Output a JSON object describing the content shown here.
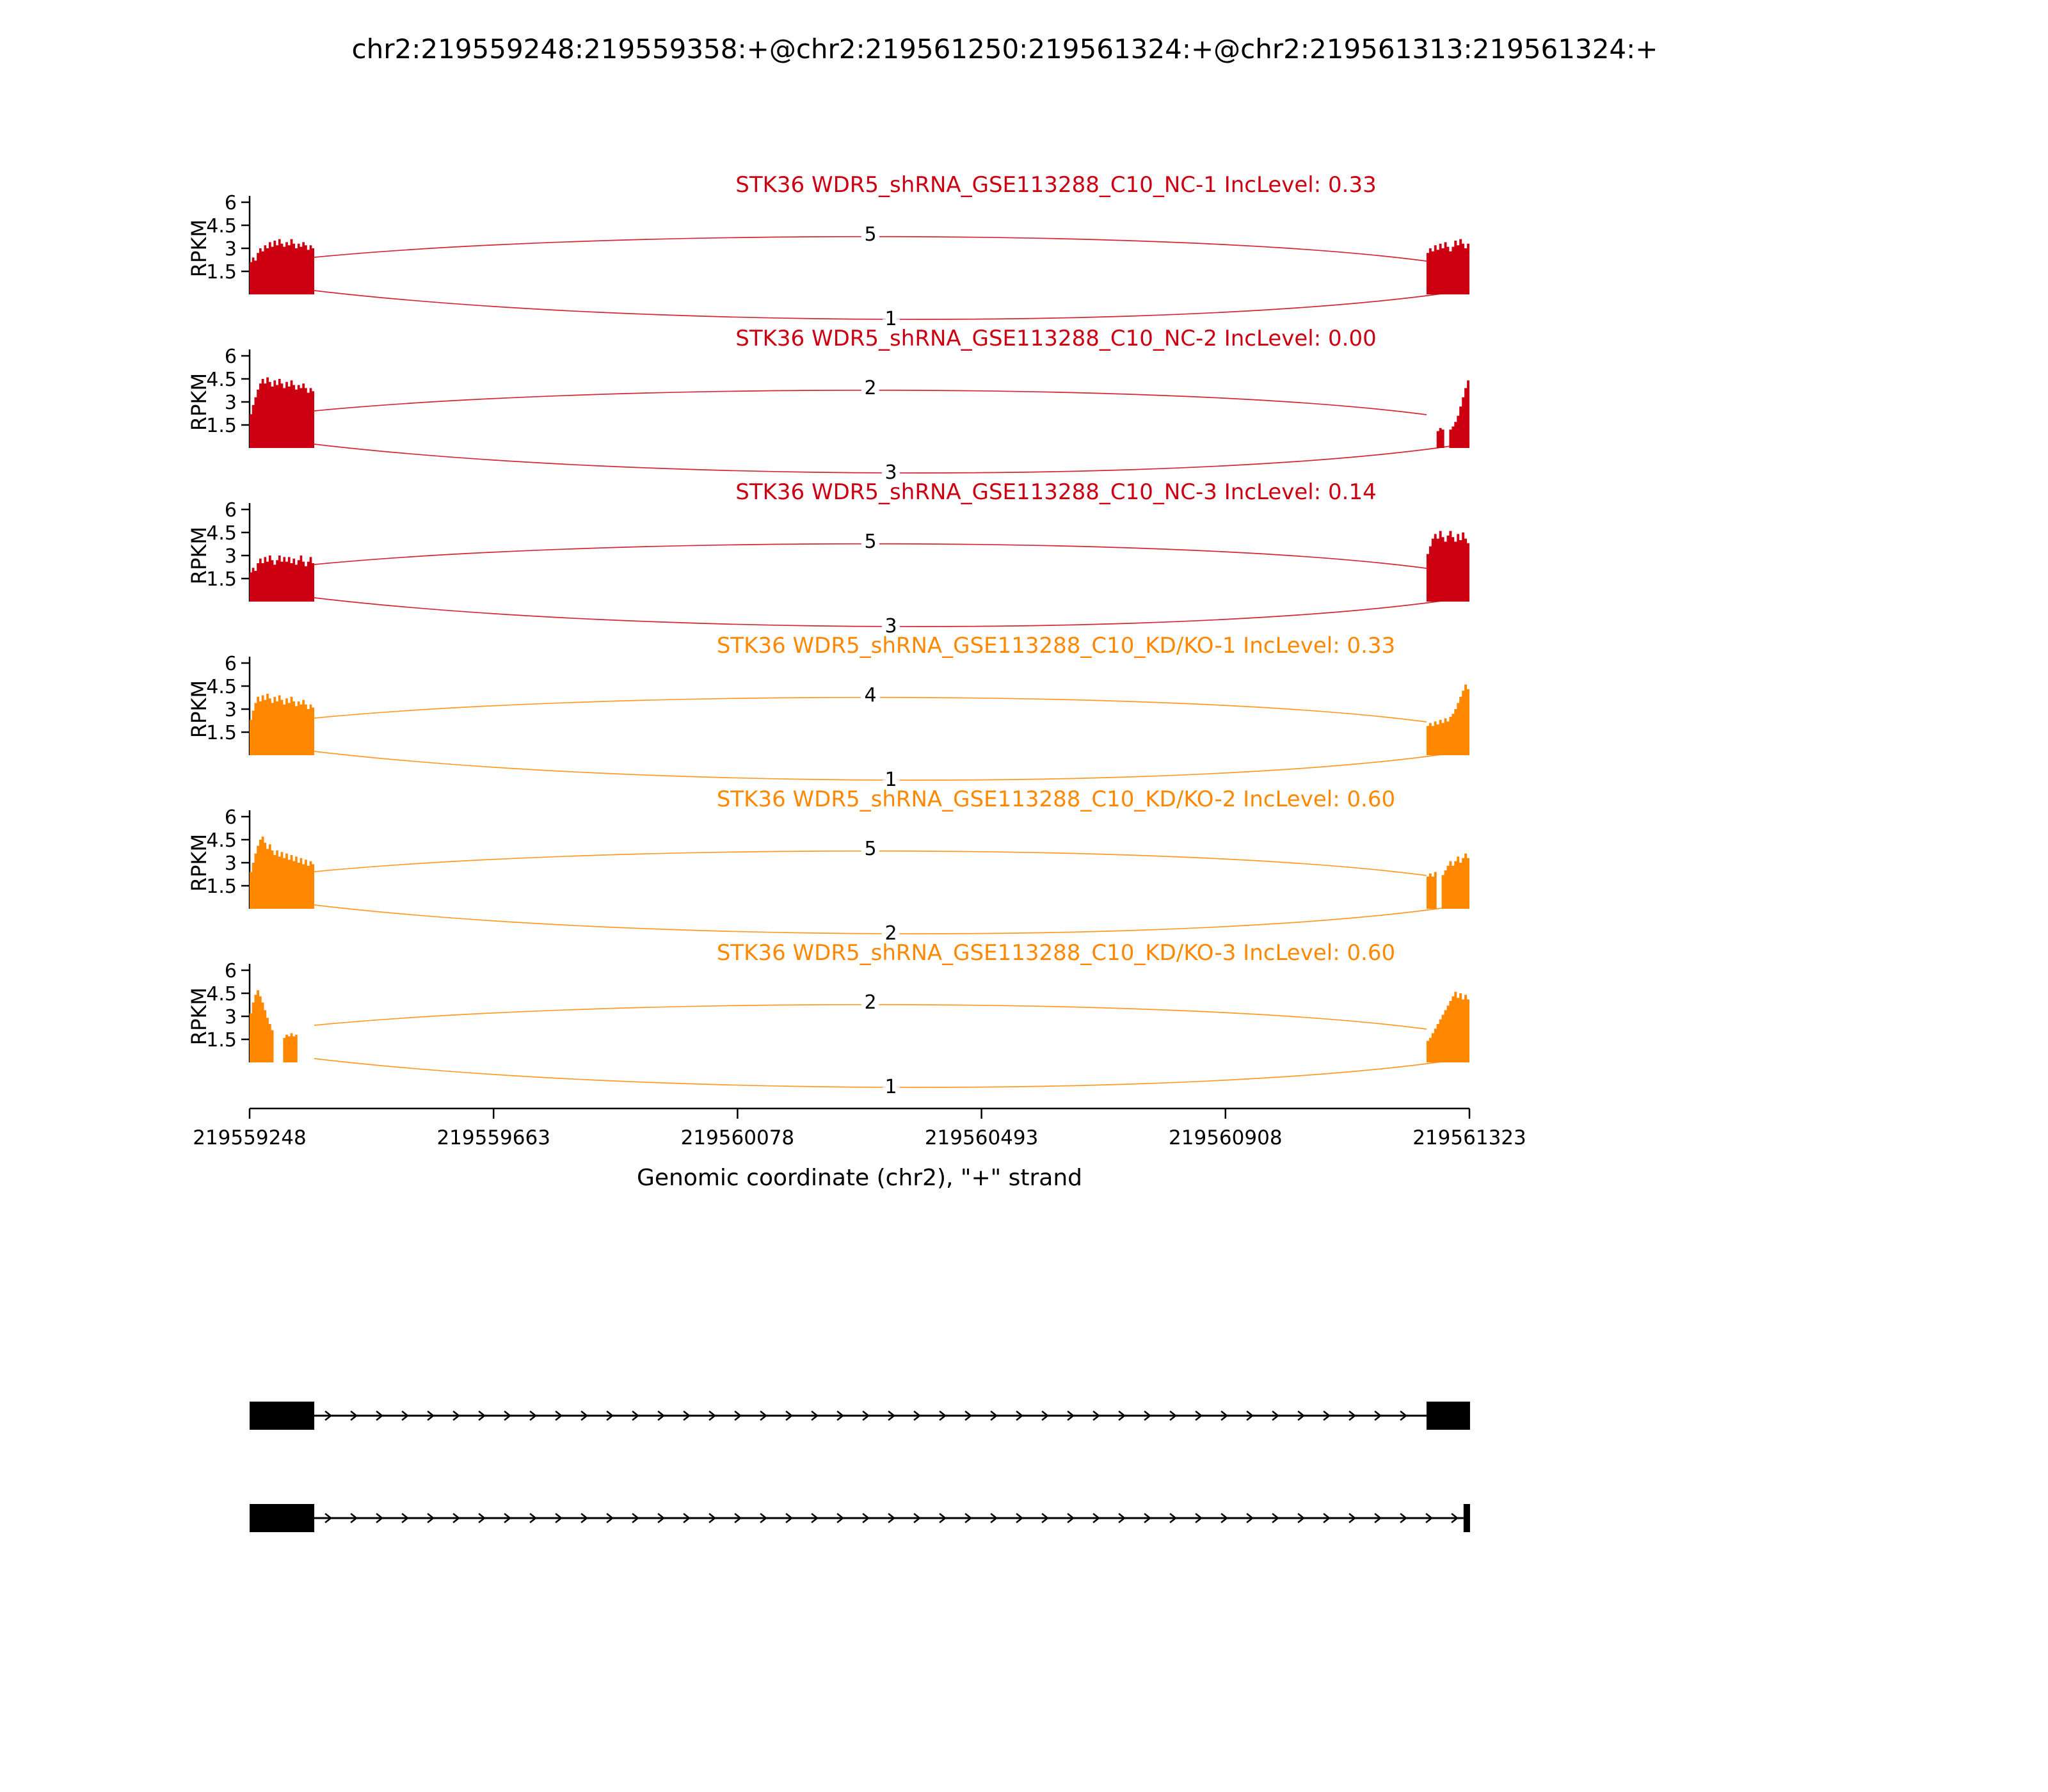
{
  "title": "chr2:219559248:219559358:+@chr2:219561250:219561324:+@chr2:219561313:219561324:+",
  "chart_data": {
    "type": "area",
    "subtype": "sashimi-plot",
    "colors": {
      "NC": "#CC0011",
      "KD": "#FF8800"
    },
    "y_axis": {
      "label": "RPKM",
      "ticks": [
        "1.5",
        "3",
        "4.5",
        "6"
      ],
      "tick_values": [
        1.5,
        3,
        4.5,
        6
      ],
      "max": 6
    },
    "x_axis": {
      "label": "Genomic coordinate (chr2), \"+\" strand",
      "tick_labels": [
        "219559248",
        "219559663",
        "219560078",
        "219560493",
        "219560908",
        "219561323"
      ],
      "tick_values": [
        219559248,
        219559663,
        219560078,
        219560493,
        219560908,
        219561323
      ],
      "start": 219559248,
      "end": 219561323
    },
    "region": {
      "exon_left": [
        219559248,
        219559358
      ],
      "exon_right_long": [
        219561250,
        219561324
      ],
      "exon_right_short": [
        219561313,
        219561324
      ]
    },
    "tracks": [
      {
        "id": "NC-1",
        "group": "NC",
        "label": "STK36 WDR5_shRNA_GSE113288_C10_NC-1 IncLevel: 0.33",
        "inc_level": 0.33,
        "junctions": [
          {
            "count": "5",
            "arc": "top"
          },
          {
            "count": "1",
            "arc": "bottom"
          }
        ],
        "left_coverage": [
          2.1,
          2.4,
          2.2,
          2.7,
          3.0,
          2.8,
          3.2,
          3.0,
          3.4,
          3.1,
          3.5,
          3.2,
          3.6,
          3.3,
          3.1,
          3.4,
          3.2,
          3.6,
          3.3,
          3.0,
          3.3,
          3.1,
          3.4,
          3.2,
          2.9,
          3.2,
          3.0
        ],
        "right_coverage": [
          2.7,
          3.0,
          2.8,
          3.2,
          2.9,
          3.3,
          3.0,
          3.4,
          3.1,
          2.8,
          3.1,
          3.5,
          3.2,
          3.6,
          3.3,
          3.0,
          3.3
        ]
      },
      {
        "id": "NC-2",
        "group": "NC",
        "label": "STK36 WDR5_shRNA_GSE113288_C10_NC-2 IncLevel: 0.00",
        "inc_level": 0.0,
        "junctions": [
          {
            "count": "2",
            "arc": "top"
          },
          {
            "count": "3",
            "arc": "bottom"
          }
        ],
        "left_coverage": [
          2.2,
          2.8,
          3.3,
          3.8,
          4.2,
          4.5,
          4.2,
          4.6,
          4.3,
          4.0,
          4.4,
          4.1,
          4.5,
          4.2,
          3.9,
          4.3,
          4.0,
          4.4,
          4.1,
          3.8,
          4.1,
          3.9,
          4.2,
          3.9,
          3.6,
          3.9,
          3.7
        ],
        "right_coverage": [
          0,
          0,
          0,
          0,
          1.1,
          1.3,
          1.2,
          0,
          0,
          1.2,
          1.4,
          1.7,
          2.1,
          2.7,
          3.3,
          3.9,
          4.4
        ]
      },
      {
        "id": "NC-3",
        "group": "NC",
        "label": "STK36 WDR5_shRNA_GSE113288_C10_NC-3 IncLevel: 0.14",
        "inc_level": 0.14,
        "junctions": [
          {
            "count": "5",
            "arc": "top"
          },
          {
            "count": "3",
            "arc": "bottom"
          }
        ],
        "left_coverage": [
          1.9,
          2.2,
          2.0,
          2.5,
          2.8,
          2.5,
          2.9,
          2.6,
          3.0,
          2.7,
          2.4,
          2.7,
          3.0,
          2.6,
          2.9,
          2.6,
          2.9,
          2.5,
          2.8,
          2.4,
          2.7,
          3.0,
          2.6,
          2.3,
          2.6,
          2.9,
          2.5
        ],
        "right_coverage": [
          3.1,
          3.6,
          4.1,
          4.4,
          4.1,
          4.6,
          4.2,
          3.9,
          4.3,
          4.6,
          4.2,
          3.9,
          4.4,
          4.0,
          4.5,
          4.1,
          3.8
        ]
      },
      {
        "id": "KD/KO-1",
        "group": "KD",
        "label": "STK36 WDR5_shRNA_GSE113288_C10_KD/KO-1 IncLevel: 0.33",
        "inc_level": 0.33,
        "junctions": [
          {
            "count": "4",
            "arc": "top"
          },
          {
            "count": "1",
            "arc": "bottom"
          }
        ],
        "left_coverage": [
          2.3,
          2.9,
          3.4,
          3.8,
          3.5,
          3.9,
          3.6,
          4.0,
          3.7,
          3.4,
          3.8,
          3.5,
          3.9,
          3.6,
          3.3,
          3.7,
          3.4,
          3.8,
          3.5,
          3.2,
          3.5,
          3.3,
          3.6,
          3.3,
          3.0,
          3.3,
          3.1
        ],
        "right_coverage": [
          1.9,
          2.1,
          1.9,
          2.2,
          2.0,
          2.3,
          2.1,
          2.4,
          2.2,
          2.5,
          2.7,
          3.0,
          3.4,
          3.8,
          4.2,
          4.6,
          4.3
        ]
      },
      {
        "id": "KD/KO-2",
        "group": "KD",
        "label": "STK36 WDR5_shRNA_GSE113288_C10_KD/KO-2 IncLevel: 0.60",
        "inc_level": 0.6,
        "junctions": [
          {
            "count": "5",
            "arc": "top"
          },
          {
            "count": "2",
            "arc": "bottom"
          }
        ],
        "left_coverage": [
          2.4,
          3.0,
          3.6,
          4.1,
          4.5,
          4.7,
          4.3,
          3.9,
          4.2,
          3.8,
          3.5,
          3.8,
          3.4,
          3.7,
          3.3,
          3.6,
          3.2,
          3.5,
          3.1,
          3.4,
          3.0,
          3.3,
          2.9,
          3.2,
          2.8,
          3.1,
          2.9
        ],
        "right_coverage": [
          2.1,
          2.3,
          2.1,
          2.4,
          0,
          0,
          2.2,
          2.5,
          2.8,
          3.1,
          2.8,
          3.1,
          3.4,
          3.0,
          3.3,
          3.6,
          3.3
        ]
      },
      {
        "id": "KD/KO-3",
        "group": "KD",
        "label": "STK36 WDR5_shRNA_GSE113288_C10_KD/KO-3 IncLevel: 0.60",
        "inc_level": 0.6,
        "junctions": [
          {
            "count": "2",
            "arc": "top"
          },
          {
            "count": "1",
            "arc": "bottom"
          }
        ],
        "left_coverage": [
          3.2,
          3.9,
          4.4,
          4.7,
          4.3,
          3.9,
          3.4,
          2.9,
          2.5,
          2.1,
          0,
          0,
          0,
          0,
          1.6,
          1.8,
          1.7,
          1.9,
          1.7,
          1.8,
          0,
          0,
          0,
          0,
          0,
          0,
          0
        ],
        "right_coverage": [
          1.4,
          1.6,
          1.9,
          2.2,
          2.5,
          2.8,
          3.1,
          3.4,
          3.7,
          4.0,
          4.3,
          4.6,
          4.2,
          4.5,
          4.1,
          4.4,
          4.1
        ]
      }
    ],
    "isoforms": [
      {
        "exons": [
          [
            219559248,
            219559358
          ],
          [
            219561250,
            219561324
          ]
        ]
      },
      {
        "exons": [
          [
            219559248,
            219559358
          ],
          [
            219561313,
            219561324
          ]
        ]
      }
    ]
  }
}
